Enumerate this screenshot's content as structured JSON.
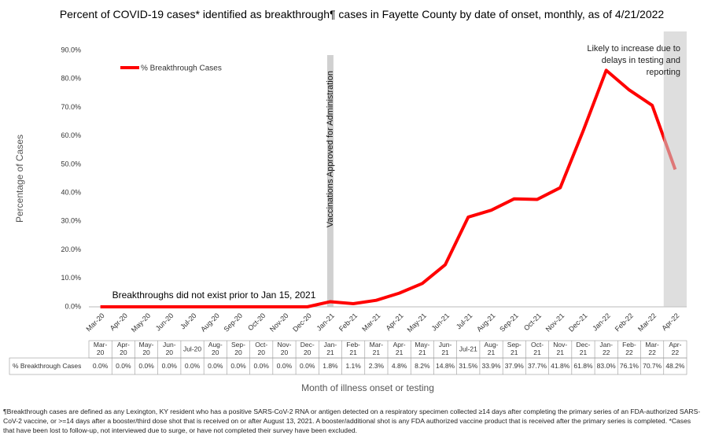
{
  "chart_data": {
    "type": "line",
    "title": "Percent of COVID-19 cases* identified as breakthrough¶ cases in Fayette County by date of onset, monthly, as of 4/21/2022",
    "y_label": "Percentage of Cases",
    "x_label": "Month of illness onset or testing",
    "categories": [
      "Mar-20",
      "Apr-20",
      "May-20",
      "Jun-20",
      "Jul-20",
      "Aug-20",
      "Sep-20",
      "Oct-20",
      "Nov-20",
      "Dec-20",
      "Jan-21",
      "Feb-21",
      "Mar-21",
      "Apr-21",
      "May-21",
      "Jun-21",
      "Jul-21",
      "Aug-21",
      "Sep-21",
      "Oct-21",
      "Nov-21",
      "Dec-21",
      "Jan-22",
      "Feb-22",
      "Mar-22",
      "Apr-22"
    ],
    "series": [
      {
        "name": "% Breakthrough Cases",
        "color": "#ff0000",
        "values": [
          0,
          0,
          0,
          0,
          0,
          0,
          0,
          0,
          0,
          0,
          1.8,
          1.1,
          2.3,
          4.8,
          8.2,
          14.8,
          31.5,
          33.9,
          37.9,
          37.7,
          41.8,
          61.8,
          83.0,
          76.1,
          70.7,
          48.2
        ],
        "value_labels": [
          "0.0%",
          "0.0%",
          "0.0%",
          "0.0%",
          "0.0%",
          "0.0%",
          "0.0%",
          "0.0%",
          "0.0%",
          "0.0%",
          "1.8%",
          "1.1%",
          "2.3%",
          "4.8%",
          "8.2%",
          "14.8%",
          "31.5%",
          "33.9%",
          "37.9%",
          "37.7%",
          "41.8%",
          "61.8%",
          "83.0%",
          "76.1%",
          "70.7%",
          "48.2%"
        ]
      }
    ],
    "ylim": [
      0,
      90
    ],
    "yticks": [
      {
        "value": 0,
        "label": "0.0%"
      },
      {
        "value": 10,
        "label": "10.0%"
      },
      {
        "value": 20,
        "label": "20.0%"
      },
      {
        "value": 30,
        "label": "30.0%"
      },
      {
        "value": 40,
        "label": "40.0%"
      },
      {
        "value": 50,
        "label": "50.0%"
      },
      {
        "value": 60,
        "label": "60.0%"
      },
      {
        "value": 70,
        "label": "70.0%"
      },
      {
        "value": 80,
        "label": "80.0%"
      },
      {
        "value": 90,
        "label": "90.0%"
      }
    ],
    "annotations": {
      "pre_vaccine": "Breakthroughs did not exist prior to Jan 15, 2021",
      "vaccine": "Vaccinations Approved for Administration",
      "reporting": "Likely to increase due to delays in testing and reporting"
    },
    "footnote": "¶Breakthrough cases are defined as any Lexington, KY resident who has a positive SARS-CoV-2 RNA or antigen detected on a respiratory specimen collected ≥14 days after completing the primary series of an FDA-authorized SARS-CoV-2 vaccine, or >=14 days after a booster/third dose shot that is received on or after August 13, 2021.  A booster/additional shot is any FDA authorized vaccine product that is received after the primary series is completed. *Cases that have been lost to follow-up, not interviewed due to surge, or have not completed their survey have been excluded."
  }
}
